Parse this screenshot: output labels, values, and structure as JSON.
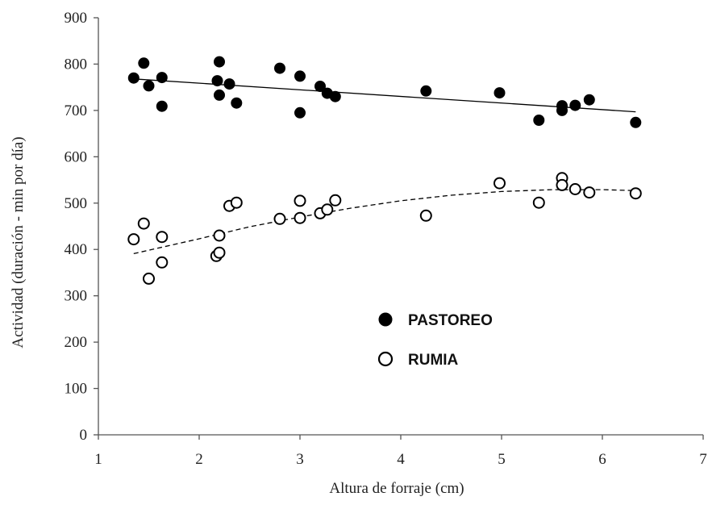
{
  "chart_data": {
    "type": "scatter",
    "title": "",
    "xlabel": "Altura de forraje (cm)",
    "ylabel": "Actividad (duración - min por día)",
    "xlim": [
      1,
      7
    ],
    "ylim": [
      0,
      900
    ],
    "xticks": [
      1,
      2,
      3,
      4,
      5,
      6,
      7
    ],
    "yticks": [
      0,
      100,
      200,
      300,
      400,
      500,
      600,
      700,
      800,
      900
    ],
    "grid": false,
    "legend_position": "center",
    "series": [
      {
        "name": "PASTOREO",
        "marker": "filled-circle",
        "color": "#000000",
        "points": [
          [
            1.35,
            770
          ],
          [
            1.45,
            802
          ],
          [
            1.5,
            753
          ],
          [
            1.63,
            771
          ],
          [
            1.63,
            709
          ],
          [
            2.18,
            764
          ],
          [
            2.2,
            805
          ],
          [
            2.2,
            733
          ],
          [
            2.3,
            757
          ],
          [
            2.37,
            716
          ],
          [
            2.8,
            791
          ],
          [
            3.0,
            774
          ],
          [
            3.0,
            695
          ],
          [
            3.2,
            752
          ],
          [
            3.27,
            737
          ],
          [
            3.35,
            730
          ],
          [
            4.25,
            742
          ],
          [
            4.98,
            738
          ],
          [
            5.37,
            679
          ],
          [
            5.6,
            710
          ],
          [
            5.6,
            700
          ],
          [
            5.73,
            711
          ],
          [
            5.87,
            723
          ],
          [
            6.33,
            674
          ]
        ],
        "trendline": {
          "style": "solid",
          "x": [
            1.35,
            6.33
          ],
          "y": [
            768,
            697
          ]
        }
      },
      {
        "name": "RUMIA",
        "marker": "open-circle",
        "color": "#000000",
        "points": [
          [
            1.35,
            422
          ],
          [
            1.45,
            456
          ],
          [
            1.5,
            337
          ],
          [
            1.63,
            427
          ],
          [
            1.63,
            372
          ],
          [
            2.17,
            386
          ],
          [
            2.2,
            393
          ],
          [
            2.2,
            430
          ],
          [
            2.3,
            494
          ],
          [
            2.37,
            501
          ],
          [
            2.8,
            466
          ],
          [
            3.0,
            505
          ],
          [
            3.0,
            468
          ],
          [
            3.2,
            478
          ],
          [
            3.27,
            486
          ],
          [
            3.35,
            506
          ],
          [
            4.25,
            473
          ],
          [
            4.98,
            543
          ],
          [
            5.37,
            501
          ],
          [
            5.6,
            554
          ],
          [
            5.6,
            539
          ],
          [
            5.73,
            530
          ],
          [
            5.87,
            523
          ],
          [
            6.33,
            521
          ]
        ],
        "trendline": {
          "style": "dashed",
          "x": [
            1.35,
            2.0,
            2.5,
            3.0,
            3.5,
            4.0,
            4.5,
            5.0,
            5.5,
            6.0,
            6.33
          ],
          "y": [
            391,
            423,
            449,
            470,
            489,
            505,
            517,
            525,
            529,
            529,
            527
          ]
        }
      }
    ]
  }
}
